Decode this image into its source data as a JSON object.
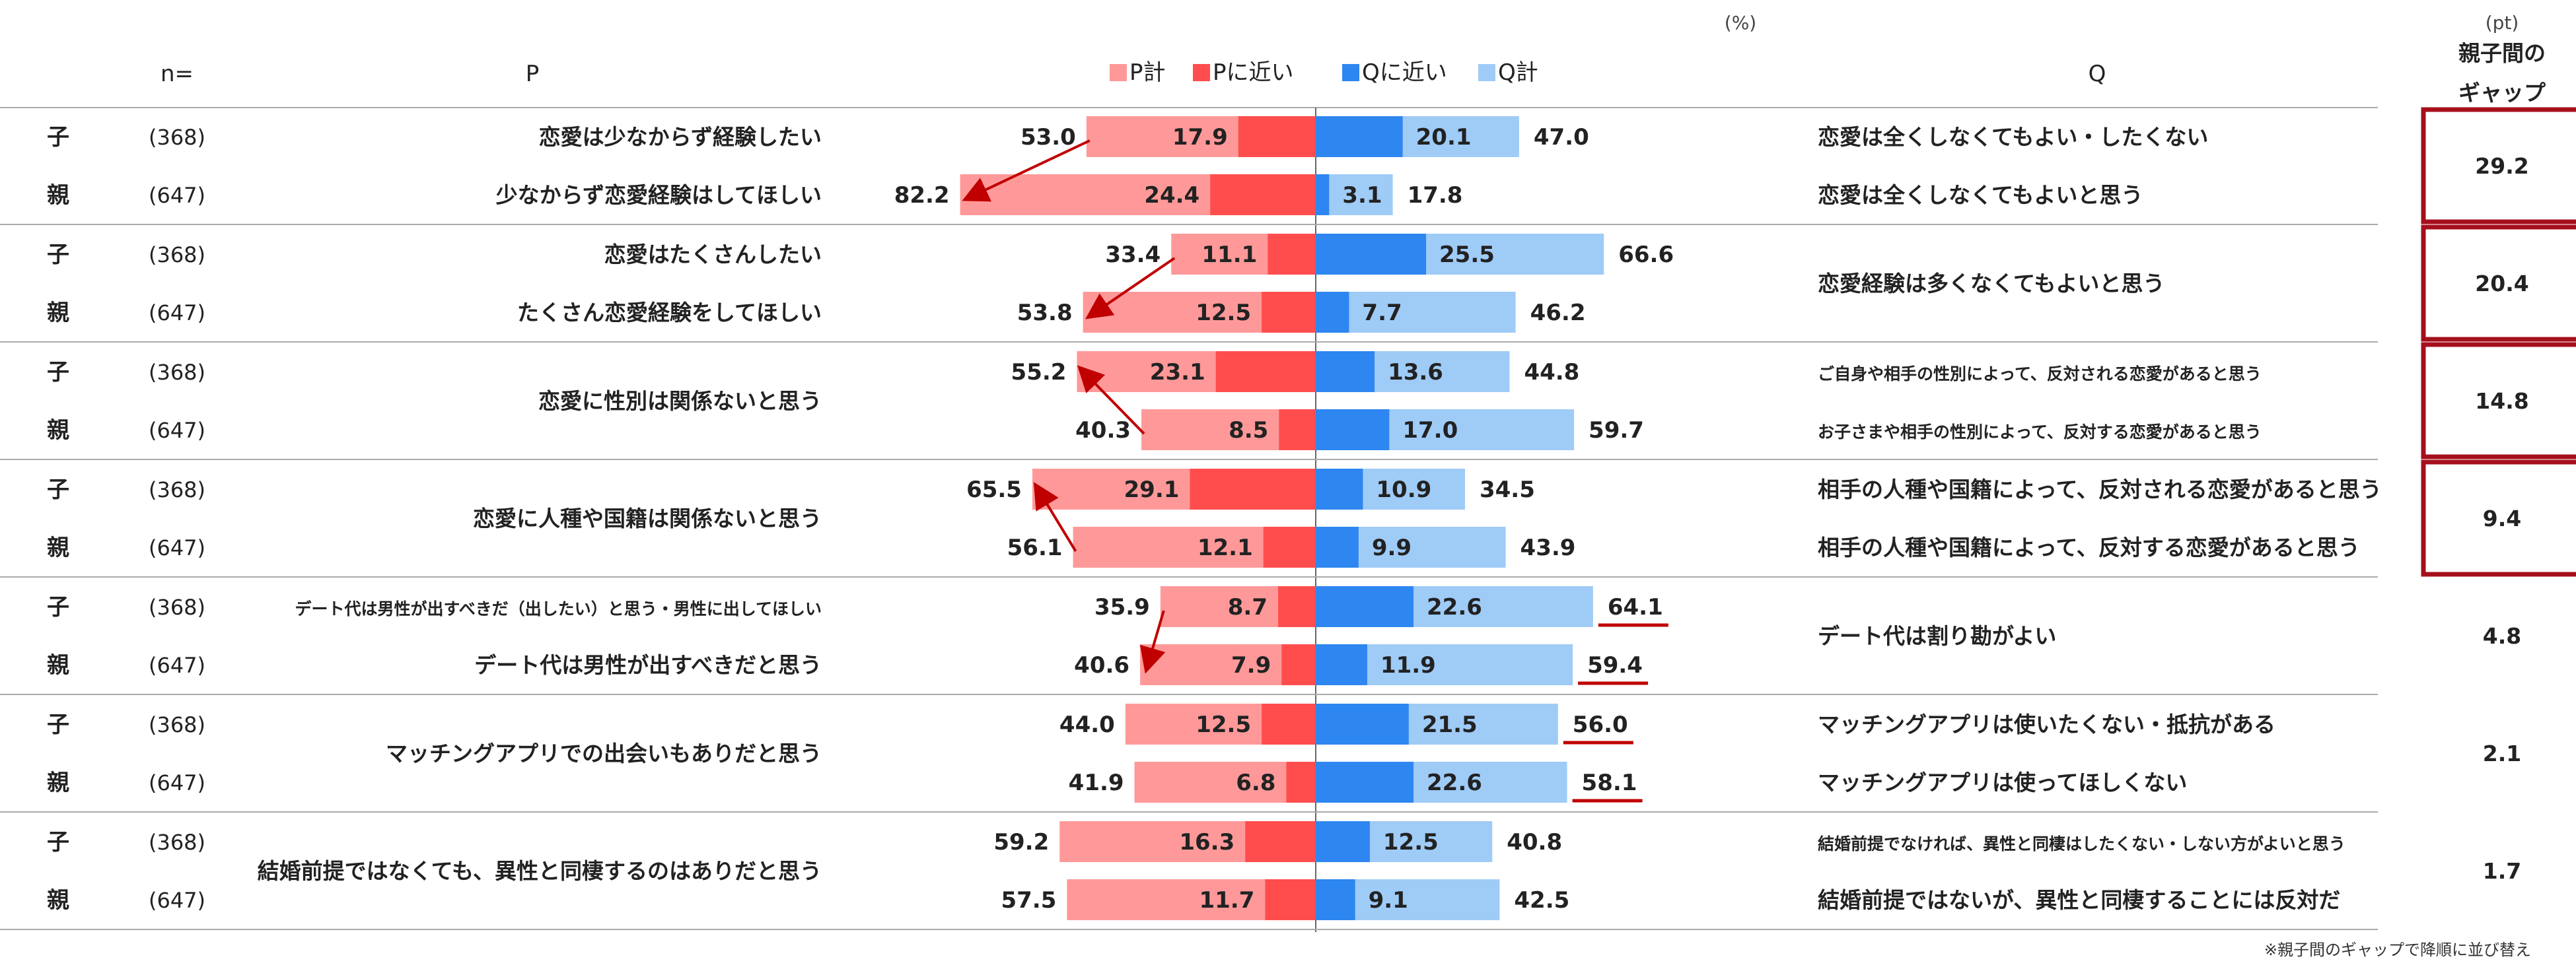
{
  "chart_data": {
    "type": "bar",
    "subtype": "diverging-stacked",
    "unit_label": "(%)",
    "gap_unit_label": "(pt)",
    "headers": {
      "n": "n=",
      "p": "P",
      "q": "Q",
      "gap": [
        "親子間の",
        "ギャップ"
      ]
    },
    "legend": [
      {
        "name": "P計",
        "color": "#ff9999"
      },
      {
        "name": "Pに近い",
        "color": "#ff4d4d"
      },
      {
        "name": "Qに近い",
        "color": "#2e86f0"
      },
      {
        "name": "Q計",
        "color": "#9fcbf7"
      }
    ],
    "colors": {
      "p_total": "#ff9999",
      "p_near": "#ff4d4d",
      "q_near": "#2e86f0",
      "q_total": "#9fcbf7",
      "arrow": "#c00000",
      "gap_box": "#a50f1c",
      "underline": "#c00000"
    },
    "axis": {
      "min": -100,
      "max": 100
    },
    "groups": [
      {
        "gap": "29.2",
        "gap_boxed": true,
        "rows": [
          {
            "who": "子",
            "n": "(368)",
            "p_stmt": "恋愛は少なからず経験したい",
            "q_stmt": "恋愛は全くしなくてもよい・したくない",
            "p_total": 53.0,
            "p_near": 17.9,
            "q_near": 20.1,
            "q_total": 47.0,
            "p_total_label": "53.0",
            "p_near_label": "17.9",
            "q_near_label": "20.1",
            "q_total_label": "47.0",
            "q_underline": false
          },
          {
            "who": "親",
            "n": "(647)",
            "p_stmt": "少なからず恋愛経験はしてほしい",
            "q_stmt": "恋愛は全くしなくてもよいと思う",
            "p_total": 82.2,
            "p_near": 24.4,
            "q_near": 3.1,
            "q_total": 17.8,
            "p_total_label": "82.2",
            "p_near_label": "24.4",
            "q_near_label": "3.1",
            "q_total_label": "17.8",
            "q_underline": false
          }
        ],
        "p_merged": false,
        "q_merged": false,
        "arrow": "down"
      },
      {
        "gap": "20.4",
        "gap_boxed": true,
        "rows": [
          {
            "who": "子",
            "n": "(368)",
            "p_stmt": "恋愛はたくさんしたい",
            "p_total": 33.4,
            "p_near": 11.1,
            "q_near": 25.5,
            "q_total": 66.6,
            "p_total_label": "33.4",
            "p_near_label": "11.1",
            "q_near_label": "25.5",
            "q_total_label": "66.6",
            "q_underline": false
          },
          {
            "who": "親",
            "n": "(647)",
            "p_stmt": "たくさん恋愛経験をしてほしい",
            "p_total": 53.8,
            "p_near": 12.5,
            "q_near": 7.7,
            "q_total": 46.2,
            "p_total_label": "53.8",
            "p_near_label": "12.5",
            "q_near_label": "7.7",
            "q_total_label": "46.2",
            "q_underline": false
          }
        ],
        "p_merged": false,
        "q_merged": true,
        "q_stmt": "恋愛経験は多くなくてもよいと思う",
        "arrow": "down"
      },
      {
        "gap": "14.8",
        "gap_boxed": true,
        "rows": [
          {
            "who": "子",
            "n": "(368)",
            "q_stmt": "ご自身や相手の性別によって、反対される恋愛があると思う",
            "p_total": 55.2,
            "p_near": 23.1,
            "q_near": 13.6,
            "q_total": 44.8,
            "p_total_label": "55.2",
            "p_near_label": "23.1",
            "q_near_label": "13.6",
            "q_total_label": "44.8",
            "q_underline": false,
            "q_small": true
          },
          {
            "who": "親",
            "n": "(647)",
            "q_stmt": "お子さまや相手の性別によって、反対する恋愛があると思う",
            "p_total": 40.3,
            "p_near": 8.5,
            "q_near": 17.0,
            "q_total": 59.7,
            "p_total_label": "40.3",
            "p_near_label": "8.5",
            "q_near_label": "17.0",
            "q_total_label": "59.7",
            "q_underline": false,
            "q_small": true
          }
        ],
        "p_merged": true,
        "p_stmt": "恋愛に性別は関係ないと思う",
        "q_merged": false,
        "arrow": "up"
      },
      {
        "gap": "9.4",
        "gap_boxed": true,
        "rows": [
          {
            "who": "子",
            "n": "(368)",
            "q_stmt": "相手の人種や国籍によって、反対される恋愛があると思う",
            "p_total": 65.5,
            "p_near": 29.1,
            "q_near": 10.9,
            "q_total": 34.5,
            "p_total_label": "65.5",
            "p_near_label": "29.1",
            "q_near_label": "10.9",
            "q_total_label": "34.5",
            "q_underline": false
          },
          {
            "who": "親",
            "n": "(647)",
            "q_stmt": "相手の人種や国籍によって、反対する恋愛があると思う",
            "p_total": 56.1,
            "p_near": 12.1,
            "q_near": 9.9,
            "q_total": 43.9,
            "p_total_label": "56.1",
            "p_near_label": "12.1",
            "q_near_label": "9.9",
            "q_total_label": "43.9",
            "q_underline": false
          }
        ],
        "p_merged": true,
        "p_stmt": "恋愛に人種や国籍は関係ないと思う",
        "q_merged": false,
        "arrow": "up"
      },
      {
        "gap": "4.8",
        "gap_boxed": false,
        "rows": [
          {
            "who": "子",
            "n": "(368)",
            "p_stmt": "デート代は男性が出すべきだ（出したい）と思う・男性に出してほしい",
            "p_small": true,
            "p_total": 35.9,
            "p_near": 8.7,
            "q_near": 22.6,
            "q_total": 64.1,
            "p_total_label": "35.9",
            "p_near_label": "8.7",
            "q_near_label": "22.6",
            "q_total_label": "64.1",
            "q_underline": true
          },
          {
            "who": "親",
            "n": "(647)",
            "p_stmt": "デート代は男性が出すべきだと思う",
            "p_total": 40.6,
            "p_near": 7.9,
            "q_near": 11.9,
            "q_total": 59.4,
            "p_total_label": "40.6",
            "p_near_label": "7.9",
            "q_near_label": "11.9",
            "q_total_label": "59.4",
            "q_underline": true
          }
        ],
        "p_merged": false,
        "q_merged": true,
        "q_stmt": "デート代は割り勘がよい",
        "arrow": "down"
      },
      {
        "gap": "2.1",
        "gap_boxed": false,
        "rows": [
          {
            "who": "子",
            "n": "(368)",
            "q_stmt": "マッチングアプリは使いたくない・抵抗がある",
            "p_total": 44.0,
            "p_near": 12.5,
            "q_near": 21.5,
            "q_total": 56.0,
            "p_total_label": "44.0",
            "p_near_label": "12.5",
            "q_near_label": "21.5",
            "q_total_label": "56.0",
            "q_underline": true
          },
          {
            "who": "親",
            "n": "(647)",
            "q_stmt": "マッチングアプリは使ってほしくない",
            "p_total": 41.9,
            "p_near": 6.8,
            "q_near": 22.6,
            "q_total": 58.1,
            "p_total_label": "41.9",
            "p_near_label": "6.8",
            "q_near_label": "22.6",
            "q_total_label": "58.1",
            "q_underline": true
          }
        ],
        "p_merged": true,
        "p_stmt": "マッチングアプリでの出会いもありだと思う",
        "q_merged": false,
        "arrow": "none"
      },
      {
        "gap": "1.7",
        "gap_boxed": false,
        "rows": [
          {
            "who": "子",
            "n": "(368)",
            "q_stmt": "結婚前提でなければ、異性と同棲はしたくない・しない方がよいと思う",
            "q_small": true,
            "p_total": 59.2,
            "p_near": 16.3,
            "q_near": 12.5,
            "q_total": 40.8,
            "p_total_label": "59.2",
            "p_near_label": "16.3",
            "q_near_label": "12.5",
            "q_total_label": "40.8",
            "q_underline": false
          },
          {
            "who": "親",
            "n": "(647)",
            "q_stmt": "結婚前提ではないが、異性と同棲することには反対だ",
            "p_total": 57.5,
            "p_near": 11.7,
            "q_near": 9.1,
            "q_total": 42.5,
            "p_total_label": "57.5",
            "p_near_label": "11.7",
            "q_near_label": "9.1",
            "q_total_label": "42.5",
            "q_underline": false
          }
        ],
        "p_merged": true,
        "p_stmt": "結婚前提ではなくても、異性と同棲するのはありだと思う",
        "q_merged": false,
        "arrow": "none"
      }
    ],
    "note": "※親子間のギャップで降順に並び替え"
  }
}
